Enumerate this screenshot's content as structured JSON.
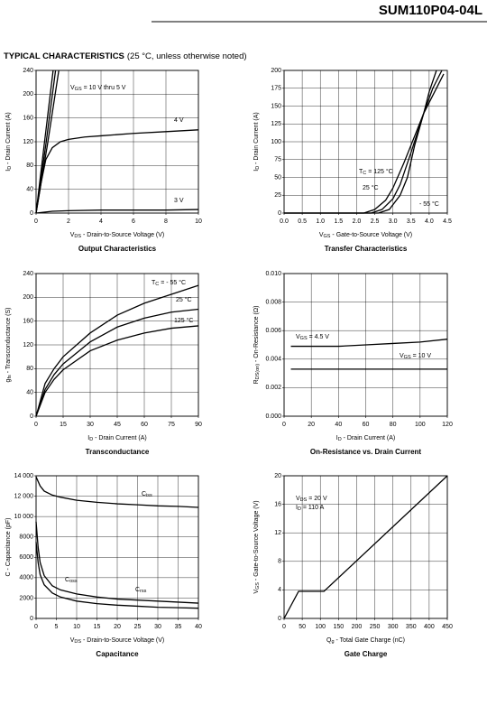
{
  "header": {
    "part_number": "SUM110P04-04L"
  },
  "section": {
    "title": "TYPICAL CHARACTERISTICS",
    "note": "(25 °C, unless otherwise noted)"
  },
  "chart_data": [
    {
      "type": "line",
      "title": "Output Characteristics",
      "xlabel": [
        "V",
        "DS",
        " - Drain-to-Source Voltage (V)"
      ],
      "ylabel": [
        "I",
        "D",
        " - Drain Current (A)"
      ],
      "xlim": [
        0,
        10
      ],
      "xticks": [
        0,
        2,
        4,
        6,
        8,
        10
      ],
      "ylim": [
        0,
        240
      ],
      "yticks": [
        0,
        40,
        80,
        120,
        160,
        200,
        240
      ],
      "grid": true,
      "annotations": [
        [
          "V",
          "GS",
          " = 10 V thru 5 V"
        ],
        [
          "4 V"
        ],
        [
          "3 V"
        ]
      ],
      "series": [
        {
          "color": "#000000",
          "x": [
            0,
            0.5,
            1.05
          ],
          "values": [
            0,
            115,
            240
          ]
        },
        {
          "color": "#000000",
          "x": [
            0,
            0.6,
            1.2
          ],
          "values": [
            0,
            115,
            240
          ]
        },
        {
          "color": "#000000",
          "x": [
            0,
            0.7,
            1.4
          ],
          "values": [
            0,
            115,
            240
          ]
        },
        {
          "color": "#000000",
          "x": [
            0,
            0.3,
            0.6,
            1,
            1.5,
            2,
            3,
            4,
            6,
            8,
            10
          ],
          "values": [
            0,
            50,
            90,
            110,
            120,
            124,
            128,
            130,
            134,
            137,
            140
          ]
        },
        {
          "color": "#000000",
          "x": [
            0,
            1,
            2,
            4,
            6,
            8,
            10
          ],
          "values": [
            0,
            3,
            4,
            5,
            5,
            5,
            6
          ]
        }
      ]
    },
    {
      "type": "line",
      "title": "Transfer Characteristics",
      "xlabel": [
        "V",
        "GS",
        " - Gate-to-Source Voltage (V)"
      ],
      "ylabel": [
        "I",
        "D",
        " - Drain Current (A)"
      ],
      "xlim": [
        0,
        4.5
      ],
      "xticks": [
        {
          "value": 0,
          "label": "0.0"
        },
        0.5,
        {
          "value": 1,
          "label": "1.0"
        },
        1.5,
        {
          "value": 2,
          "label": "2.0"
        },
        2.5,
        {
          "value": 3,
          "label": "3.0"
        },
        3.5,
        {
          "value": 4,
          "label": "4.0"
        },
        4.5
      ],
      "ylim": [
        0,
        200
      ],
      "yticks": [
        0,
        25,
        50,
        75,
        100,
        125,
        150,
        175,
        200
      ],
      "grid": true,
      "annotations": [
        [
          "T",
          "C",
          " = 125 °C"
        ],
        [
          "25 °C"
        ],
        [
          "- 55 °C"
        ]
      ],
      "series": [
        {
          "color": "#000000",
          "x": [
            0,
            2.2,
            2.5,
            2.8,
            3.0,
            3.3,
            3.6,
            3.85,
            4.1,
            4.4
          ],
          "values": [
            0,
            0,
            5,
            18,
            35,
            70,
            108,
            140,
            165,
            195
          ]
        },
        {
          "color": "#000000",
          "x": [
            0,
            2.4,
            2.7,
            3.0,
            3.2,
            3.5,
            3.85,
            4.1,
            4.35
          ],
          "values": [
            0,
            0,
            5,
            20,
            40,
            85,
            140,
            175,
            200
          ]
        },
        {
          "color": "#000000",
          "x": [
            0,
            2.6,
            2.9,
            3.2,
            3.4,
            3.6,
            3.85,
            4.0,
            4.2
          ],
          "values": [
            0,
            0,
            5,
            25,
            50,
            95,
            140,
            170,
            200
          ]
        }
      ]
    },
    {
      "type": "line",
      "title": "Transconductance",
      "xlabel": [
        "I",
        "D",
        " - Drain Current (A)"
      ],
      "ylabel": [
        "g",
        "fs",
        " - Transconductance (S)"
      ],
      "xlim": [
        0,
        90
      ],
      "xticks": [
        0,
        15,
        30,
        45,
        60,
        75,
        90
      ],
      "ylim": [
        0,
        240
      ],
      "yticks": [
        0,
        40,
        80,
        120,
        160,
        200,
        240
      ],
      "grid": true,
      "annotations": [
        [
          "T",
          "C",
          " = - 55 °C"
        ],
        [
          "25 °C"
        ],
        [
          "125 °C"
        ]
      ],
      "series": [
        {
          "color": "#000000",
          "x": [
            0,
            5,
            10,
            15,
            30,
            45,
            60,
            75,
            90
          ],
          "values": [
            0,
            55,
            80,
            100,
            140,
            170,
            190,
            205,
            220
          ]
        },
        {
          "color": "#000000",
          "x": [
            0,
            5,
            10,
            15,
            30,
            45,
            60,
            75,
            90
          ],
          "values": [
            0,
            45,
            70,
            88,
            125,
            150,
            165,
            175,
            180
          ]
        },
        {
          "color": "#000000",
          "x": [
            0,
            5,
            10,
            15,
            30,
            45,
            60,
            75,
            90
          ],
          "values": [
            0,
            40,
            62,
            78,
            110,
            128,
            140,
            148,
            152
          ]
        }
      ]
    },
    {
      "type": "line",
      "title": "On-Resistance vs. Drain Current",
      "xlabel": [
        "I",
        "D",
        " - Drain Current (A)"
      ],
      "ylabel": [
        "R",
        "DS(on)",
        " - On-Resistance (Ω)"
      ],
      "xlim": [
        0,
        120
      ],
      "xticks": [
        0,
        20,
        40,
        60,
        80,
        100,
        120
      ],
      "ylim": [
        0,
        0.01
      ],
      "yticks": [
        {
          "value": 0,
          "label": "0.000"
        },
        0.002,
        0.004,
        0.006,
        0.008,
        {
          "value": 0.01,
          "label": "0.010"
        }
      ],
      "grid": true,
      "annotations": [
        [
          "V",
          "GS",
          " = 4.5 V"
        ],
        [
          "V",
          "GS",
          " = 10 V"
        ]
      ],
      "series": [
        {
          "color": "#000000",
          "x": [
            5,
            40,
            60,
            80,
            100,
            120
          ],
          "values": [
            0.0049,
            0.0049,
            0.005,
            0.0051,
            0.0052,
            0.0054
          ]
        },
        {
          "color": "#000000",
          "x": [
            5,
            120
          ],
          "values": [
            0.0033,
            0.0033
          ]
        }
      ]
    },
    {
      "type": "line",
      "title": "Capacitance",
      "xlabel": [
        "V",
        "DS",
        " - Drain-to-Source Voltage (V)"
      ],
      "ylabel": [
        "C - Capacitance (pF)"
      ],
      "xlim": [
        0,
        40
      ],
      "xticks": [
        0,
        5,
        10,
        15,
        20,
        25,
        30,
        35,
        40
      ],
      "ylim": [
        0,
        14000
      ],
      "yticks": [
        0,
        2000,
        4000,
        6000,
        8000,
        {
          "value": 10000,
          "label": "10 000"
        },
        {
          "value": 12000,
          "label": "12 000"
        },
        {
          "value": 14000,
          "label": "14 000"
        }
      ],
      "grid": true,
      "annotations": [
        [
          "C",
          "iss"
        ],
        [
          "C",
          "oss"
        ],
        [
          "C",
          "rss"
        ]
      ],
      "series": [
        {
          "color": "#000000",
          "x": [
            0,
            1,
            2,
            4,
            6,
            10,
            15,
            20,
            25,
            30,
            35,
            40
          ],
          "values": [
            13900,
            13000,
            12500,
            12100,
            11900,
            11600,
            11400,
            11250,
            11150,
            11050,
            11000,
            10900
          ]
        },
        {
          "color": "#000000",
          "x": [
            0,
            0.5,
            1,
            2,
            4,
            6,
            10,
            15,
            20,
            25,
            30,
            35,
            40
          ],
          "values": [
            7500,
            5500,
            4300,
            3300,
            2500,
            2100,
            1700,
            1450,
            1300,
            1200,
            1100,
            1050,
            1000
          ]
        },
        {
          "color": "#000000",
          "x": [
            0,
            0.5,
            1,
            2,
            4,
            6,
            10,
            15,
            20,
            25,
            30,
            35,
            40
          ],
          "values": [
            9500,
            7000,
            5500,
            4200,
            3200,
            2800,
            2400,
            2100,
            1900,
            1800,
            1700,
            1600,
            1500
          ]
        }
      ]
    },
    {
      "type": "line",
      "title": "Gate Charge",
      "xlabel": [
        "Q",
        "g",
        " - Total Gate Charge (nC)"
      ],
      "ylabel": [
        "V",
        "GS",
        " - Gate-to-Source Voltage (V)"
      ],
      "xlim": [
        0,
        450
      ],
      "xticks": [
        0,
        50,
        100,
        150,
        200,
        250,
        300,
        350,
        400,
        450
      ],
      "ylim": [
        0,
        20
      ],
      "yticks": [
        0,
        4,
        8,
        12,
        16,
        20
      ],
      "grid": true,
      "annotations": [
        [
          "V",
          "DS",
          " = 20 V"
        ],
        [
          "I",
          "D",
          " = 110 A"
        ]
      ],
      "series": [
        {
          "color": "#000000",
          "x": [
            0,
            40,
            110,
            450
          ],
          "values": [
            0,
            3.8,
            3.8,
            20
          ]
        }
      ]
    }
  ]
}
